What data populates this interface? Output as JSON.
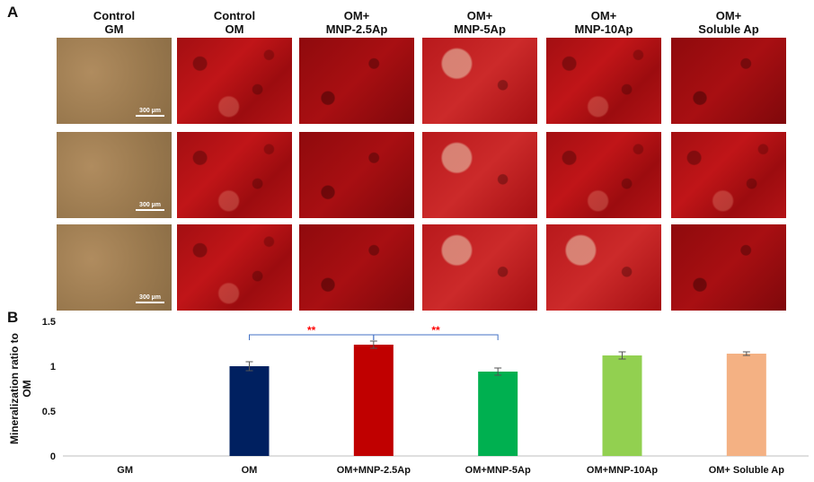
{
  "panel_a_label": "A",
  "panel_b_label": "B",
  "columns": [
    {
      "line1": "Control",
      "line2": "GM"
    },
    {
      "line1": "Control",
      "line2": "OM"
    },
    {
      "line1": "OM+",
      "line2": "MNP-2.5Ap"
    },
    {
      "line1": "OM+",
      "line2": "MNP-5Ap"
    },
    {
      "line1": "OM+",
      "line2": "MNP-10Ap"
    },
    {
      "line1": "OM+",
      "line2": "Soluble Ap"
    }
  ],
  "scale_bar_label": "300 µm",
  "chart_data": {
    "type": "bar",
    "title": "",
    "xlabel": "",
    "ylabel": "Mineralization ratio to OM",
    "ylim": [
      0,
      1.5
    ],
    "yticks": [
      "0",
      "0.5",
      "1",
      "1.5"
    ],
    "grid": false,
    "categories": [
      "GM",
      "OM",
      "OM+MNP-2.5Ap",
      "OM+MNP-5Ap",
      "OM+MNP-10Ap",
      "OM+ Soluble Ap"
    ],
    "values": [
      0,
      1.0,
      1.24,
      0.94,
      1.12,
      1.14
    ],
    "errors": [
      0,
      0.05,
      0.04,
      0.04,
      0.04,
      0.02
    ],
    "colors": [
      "#ffffff",
      "#002060",
      "#c00000",
      "#00b050",
      "#92d050",
      "#f4b183"
    ],
    "significance": [
      {
        "from": 1,
        "to": 2,
        "label": "**"
      },
      {
        "from": 2,
        "to": 3,
        "label": "**"
      }
    ],
    "significance_color": "#ff0000",
    "bracket_color": "#4472c4"
  }
}
